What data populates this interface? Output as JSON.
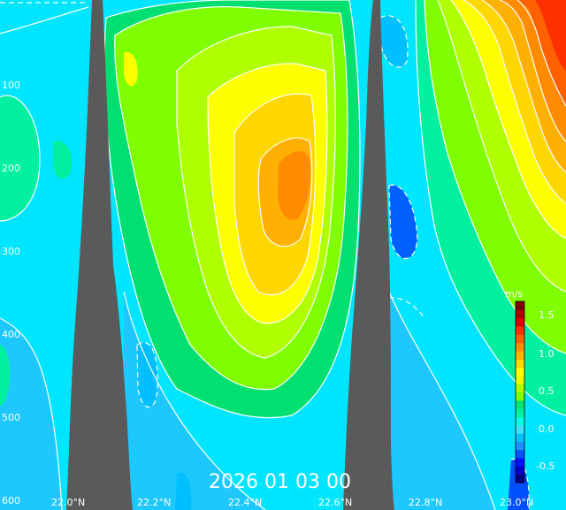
{
  "figure": {
    "timestamp": "2026 01 03 00",
    "depth_ticks": [
      "100",
      "200",
      "300",
      "400",
      "500",
      "600"
    ],
    "lat_ticks": [
      "22.0°N",
      "22.2°N",
      "22.4°N",
      "22.6°N",
      "22.8°N",
      "23.0°N"
    ],
    "colorbar": {
      "unit": "m/s",
      "labels": [
        "1.5",
        "1.0",
        "0.5",
        "0.0",
        "-0.5"
      ],
      "range": [
        -0.7,
        1.7
      ],
      "colors": [
        "#000080",
        "#0000c8",
        "#0010ff",
        "#0050ff",
        "#1e90ff",
        "#00bfff",
        "#40e0ff",
        "#00ffe0",
        "#00f0a0",
        "#00e070",
        "#7fff00",
        "#b0ff00",
        "#e8ff00",
        "#ffff00",
        "#ffd700",
        "#ffb000",
        "#ff8c00",
        "#ff6000",
        "#ff3000",
        "#e00000",
        "#b00000",
        "#800000"
      ]
    },
    "colors": {
      "background": "#00e5ff",
      "terrain": "#5a5a5a",
      "contour": "#ffffff"
    }
  }
}
